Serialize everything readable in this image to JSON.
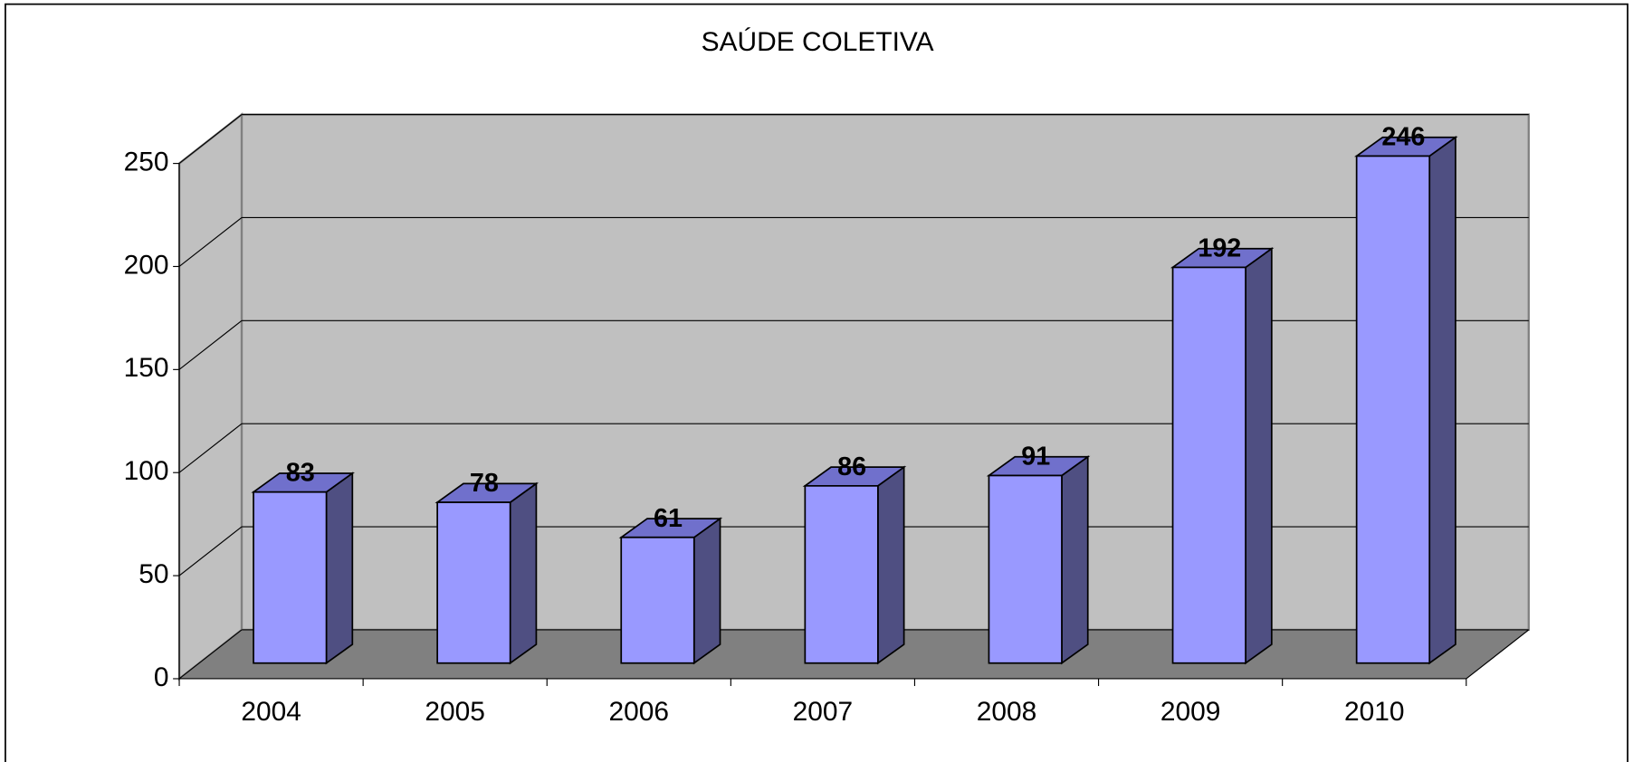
{
  "chart_data": {
    "type": "bar",
    "title": "SAÚDE COLETIVA",
    "categories": [
      "2004",
      "2005",
      "2006",
      "2007",
      "2008",
      "2009",
      "2010"
    ],
    "values": [
      83,
      78,
      61,
      86,
      91,
      192,
      246
    ],
    "color": "#9999ff",
    "ylim": [
      0,
      250
    ],
    "yticks": [
      0,
      50,
      100,
      150,
      200,
      250
    ],
    "grid": true
  }
}
